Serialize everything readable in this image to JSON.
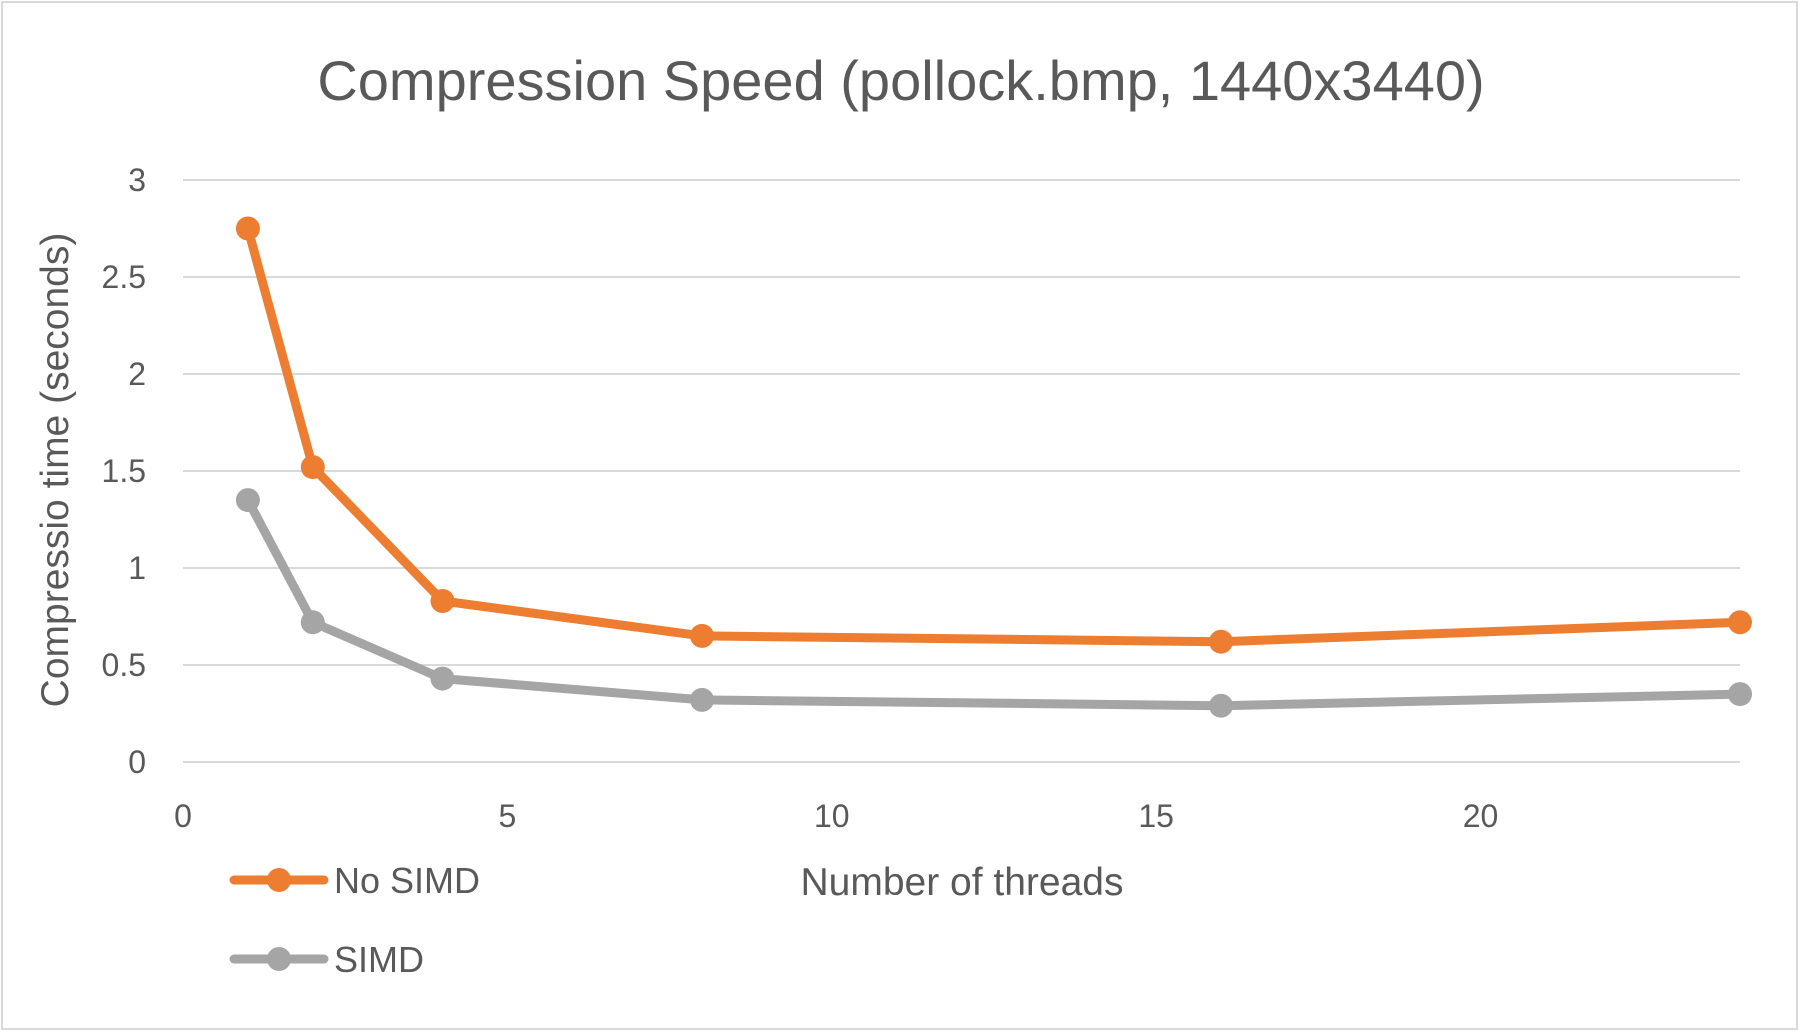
{
  "chart_data": {
    "type": "line",
    "title": "Compression Speed (pollock.bmp, 1440x3440)",
    "xlabel": "Number of threads",
    "ylabel": "Compressio time (seconds)",
    "xlim": [
      0,
      24
    ],
    "ylim": [
      0,
      3
    ],
    "xticks": [
      "0",
      "5",
      "10",
      "15",
      "20"
    ],
    "yticks": [
      "0",
      "0.5",
      "1",
      "1.5",
      "2",
      "2.5",
      "3"
    ],
    "grid": "horizontal",
    "legend_position": "bottom-left",
    "series": [
      {
        "name": "No SIMD",
        "color": "#ED7D31",
        "x": [
          1,
          2,
          4,
          8,
          16,
          24
        ],
        "y": [
          2.75,
          1.52,
          0.83,
          0.65,
          0.62,
          0.72
        ]
      },
      {
        "name": "SIMD",
        "color": "#A5A5A5",
        "x": [
          1,
          2,
          4,
          8,
          16,
          24
        ],
        "y": [
          1.35,
          0.72,
          0.43,
          0.32,
          0.29,
          0.35
        ]
      }
    ]
  }
}
